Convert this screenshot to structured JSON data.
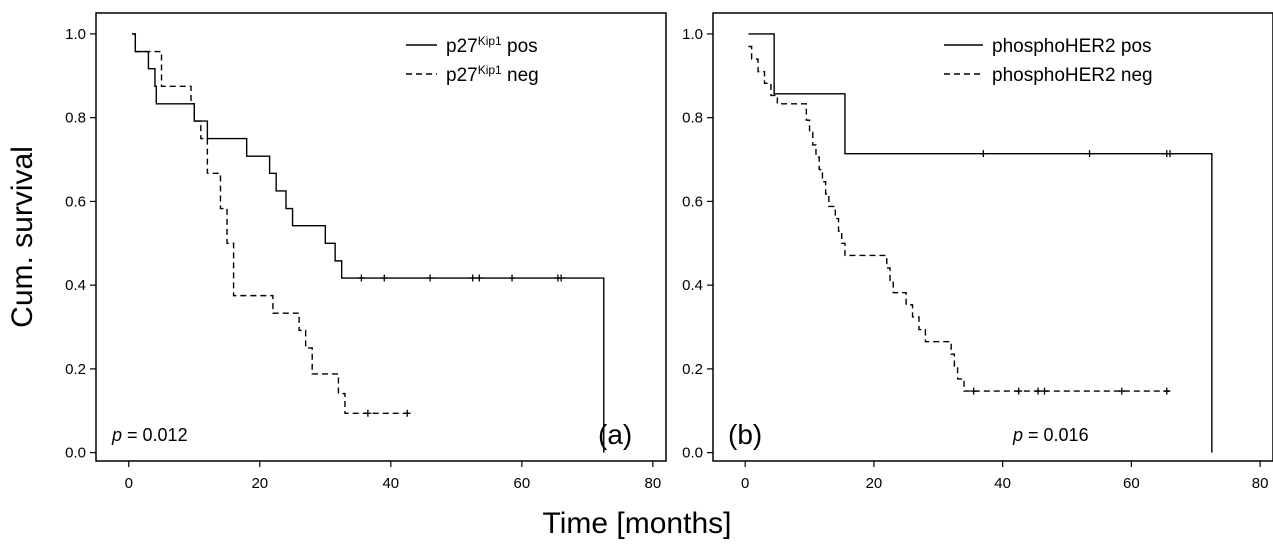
{
  "figure": {
    "y_axis_title": "Cum. survival",
    "x_axis_title": "Time [months]"
  },
  "chart_data": [
    {
      "type": "line",
      "panel_label": "(a)",
      "p_value": {
        "symbol": "p",
        "text": " = 0.012"
      },
      "xlim": [
        -5,
        82
      ],
      "ylim": [
        -0.02,
        1.05
      ],
      "x_ticks": [
        "0",
        "20",
        "40",
        "60",
        "80"
      ],
      "y_ticks": [
        "0.0",
        "0.2",
        "0.4",
        "0.6",
        "0.8",
        "1.0"
      ],
      "legend_position": "top-right",
      "series": [
        {
          "name": "pos",
          "legend": {
            "base": "p27",
            "sup": "Kip1",
            "suffix": " pos"
          },
          "style": "solid",
          "steps": [
            [
              0.5,
              1.0
            ],
            [
              1,
              0.958
            ],
            [
              3,
              0.917
            ],
            [
              4,
              0.875
            ],
            [
              4.2,
              0.833
            ],
            [
              10,
              0.792
            ],
            [
              12,
              0.75
            ],
            [
              18,
              0.708
            ],
            [
              21.5,
              0.667
            ],
            [
              22.5,
              0.625
            ],
            [
              24,
              0.583
            ],
            [
              25,
              0.542
            ],
            [
              30,
              0.5
            ],
            [
              31.5,
              0.458
            ],
            [
              32.5,
              0.417
            ],
            [
              72.5,
              0.0
            ]
          ],
          "end_x": 72.5,
          "censored": [
            [
              35.5,
              0.417
            ],
            [
              39,
              0.417
            ],
            [
              46,
              0.417
            ],
            [
              52.5,
              0.417
            ],
            [
              53.5,
              0.417
            ],
            [
              58.5,
              0.417
            ],
            [
              65.5,
              0.417
            ],
            [
              66,
              0.417
            ]
          ]
        },
        {
          "name": "neg",
          "legend": {
            "base": "p27",
            "sup": "Kip1",
            "suffix": " neg"
          },
          "style": "dashed",
          "steps": [
            [
              0.5,
              1.0
            ],
            [
              1,
              0.958
            ],
            [
              5,
              0.875
            ],
            [
              9.5,
              0.833
            ],
            [
              10,
              0.792
            ],
            [
              11,
              0.75
            ],
            [
              12,
              0.667
            ],
            [
              14,
              0.583
            ],
            [
              15,
              0.5
            ],
            [
              16,
              0.375
            ],
            [
              22,
              0.333
            ],
            [
              26,
              0.292
            ],
            [
              27,
              0.25
            ],
            [
              28,
              0.188
            ],
            [
              32,
              0.141
            ],
            [
              33,
              0.094
            ]
          ],
          "end_x": 43,
          "censored": [
            [
              36.5,
              0.094
            ],
            [
              42.5,
              0.094
            ]
          ]
        }
      ]
    },
    {
      "type": "line",
      "panel_label": "(b)",
      "p_value": {
        "symbol": "p",
        "text": " = 0.016"
      },
      "xlim": [
        -5,
        82
      ],
      "ylim": [
        -0.02,
        1.05
      ],
      "x_ticks": [
        "0",
        "20",
        "40",
        "60",
        "80"
      ],
      "y_ticks": [
        "0.0",
        "0.2",
        "0.4",
        "0.6",
        "0.8",
        "1.0"
      ],
      "legend_position": "top-right",
      "series": [
        {
          "name": "phosphoHER2 pos",
          "legend": {
            "base": "phosphoHER2",
            "sup": "",
            "suffix": " pos"
          },
          "style": "solid",
          "steps": [
            [
              0.5,
              1.0
            ],
            [
              4.5,
              0.857
            ],
            [
              15.5,
              0.714
            ],
            [
              72.5,
              0.0
            ]
          ],
          "end_x": 72.5,
          "censored": [
            [
              37,
              0.714
            ],
            [
              53.5,
              0.714
            ],
            [
              65.5,
              0.714
            ],
            [
              66,
              0.714
            ]
          ]
        },
        {
          "name": "phosphoHER2 neg",
          "legend": {
            "base": "phosphoHER2",
            "sup": "",
            "suffix": " neg"
          },
          "style": "dashed",
          "steps": [
            [
              0.5,
              0.97
            ],
            [
              1,
              0.94
            ],
            [
              2,
              0.91
            ],
            [
              3,
              0.882
            ],
            [
              4,
              0.853
            ],
            [
              5,
              0.833
            ],
            [
              9.5,
              0.794
            ],
            [
              10,
              0.765
            ],
            [
              10.5,
              0.735
            ],
            [
              11,
              0.706
            ],
            [
              11.5,
              0.676
            ],
            [
              12,
              0.647
            ],
            [
              12.5,
              0.618
            ],
            [
              13,
              0.588
            ],
            [
              14,
              0.559
            ],
            [
              14.5,
              0.529
            ],
            [
              15,
              0.5
            ],
            [
              15.5,
              0.471
            ],
            [
              22,
              0.441
            ],
            [
              22.5,
              0.412
            ],
            [
              23,
              0.382
            ],
            [
              25,
              0.353
            ],
            [
              26,
              0.324
            ],
            [
              27,
              0.294
            ],
            [
              28,
              0.265
            ],
            [
              32,
              0.235
            ],
            [
              32.5,
              0.206
            ],
            [
              33,
              0.176
            ],
            [
              34,
              0.147
            ]
          ],
          "end_x": 66,
          "censored": [
            [
              35.5,
              0.147
            ],
            [
              42.5,
              0.147
            ],
            [
              45.5,
              0.147
            ],
            [
              46.5,
              0.147
            ],
            [
              58.5,
              0.147
            ],
            [
              65.5,
              0.147
            ]
          ]
        }
      ]
    }
  ]
}
